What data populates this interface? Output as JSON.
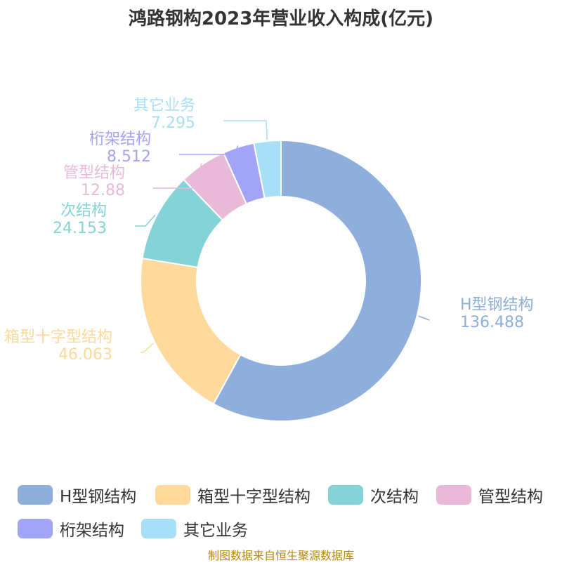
{
  "title": "鸿路钢构2023年营业收入构成(亿元)",
  "source": "制图数据来自恒生聚源数据库",
  "chart_data": {
    "type": "pie",
    "variant": "donut",
    "legend_position": "bottom",
    "slices": [
      {
        "name": "H型钢结构",
        "value": 136.488,
        "label": "136.488",
        "color": "#8EAEDB"
      },
      {
        "name": "箱型十字型结构",
        "value": 46.063,
        "label": "46.063",
        "color": "#FDD99B"
      },
      {
        "name": "次结构",
        "value": 24.153,
        "label": "24.153",
        "color": "#84D4D7"
      },
      {
        "name": "管型结构",
        "value": 12.88,
        "label": "12.88",
        "color": "#E8B9D9"
      },
      {
        "name": "桁架结构",
        "value": 8.512,
        "label": "8.512",
        "color": "#A2A5F7"
      },
      {
        "name": "其它业务",
        "value": 7.295,
        "label": "7.295",
        "color": "#A8DFF7"
      }
    ]
  }
}
